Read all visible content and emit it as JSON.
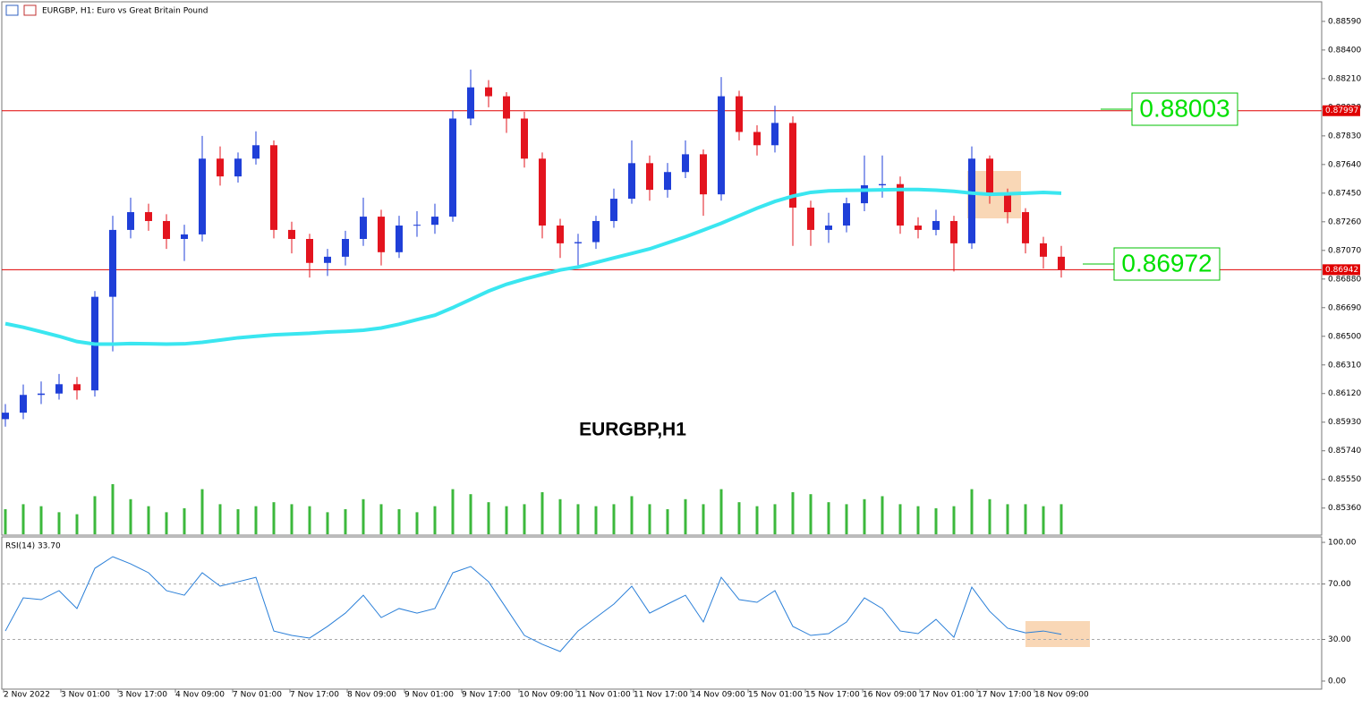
{
  "header": {
    "title": "EURGBP, H1:  Euro vs Great Britain Pound"
  },
  "chart_data": [
    {
      "type": "candlestick",
      "title": "EURGBP,H1",
      "x_labels": [
        "2 Nov 2022",
        "3 Nov 01:00",
        "3 Nov 17:00",
        "4 Nov 09:00",
        "7 Nov 01:00",
        "7 Nov 17:00",
        "8 Nov 09:00",
        "9 Nov 01:00",
        "9 Nov 17:00",
        "10 Nov 09:00",
        "11 Nov 01:00",
        "11 Nov 17:00",
        "14 Nov 09:00",
        "15 Nov 01:00",
        "15 Nov 17:00",
        "16 Nov 09:00",
        "17 Nov 01:00",
        "17 Nov 17:00",
        "18 Nov 09:00"
      ],
      "open": [
        0.8595,
        0.85993,
        0.86111,
        0.8612,
        0.86182,
        0.86141,
        0.86762,
        0.87206,
        0.87324,
        0.87265,
        0.87146,
        0.87176,
        0.87679,
        0.87561,
        0.87679,
        0.87768,
        0.87206,
        0.87146,
        0.86987,
        0.87028,
        0.87146,
        0.87294,
        0.87058,
        0.87235,
        0.8724,
        0.87294,
        0.87945,
        0.88152,
        0.88093,
        0.87945,
        0.87679,
        0.87235,
        0.87117,
        0.87125,
        0.87265,
        0.87413,
        0.87649,
        0.87472,
        0.8759,
        0.87708,
        0.87442,
        0.88093,
        0.87856,
        0.87768,
        0.87916,
        0.87354,
        0.87206,
        0.87235,
        0.87383,
        0.87502,
        0.8751,
        0.87235,
        0.87206,
        0.87265,
        0.87117,
        0.87679,
        0.87442,
        0.87324,
        0.87117,
        0.87028
      ],
      "high": [
        0.8605,
        0.8618,
        0.862,
        0.8625,
        0.8623,
        0.868,
        0.873,
        0.8742,
        0.8738,
        0.8731,
        0.8724,
        0.8783,
        0.8776,
        0.8772,
        0.8786,
        0.878,
        0.8726,
        0.8718,
        0.8708,
        0.872,
        0.8742,
        0.8734,
        0.873,
        0.8733,
        0.8738,
        0.88,
        0.8827,
        0.882,
        0.8812,
        0.8799,
        0.8772,
        0.8728,
        0.8718,
        0.873,
        0.8748,
        0.878,
        0.877,
        0.8765,
        0.878,
        0.8774,
        0.8822,
        0.8813,
        0.879,
        0.8803,
        0.8796,
        0.874,
        0.8732,
        0.8742,
        0.877,
        0.877,
        0.8756,
        0.8729,
        0.8734,
        0.873,
        0.8776,
        0.877,
        0.8748,
        0.8735,
        0.8716,
        0.871
      ],
      "low": [
        0.859,
        0.8595,
        0.8605,
        0.8608,
        0.8608,
        0.861,
        0.864,
        0.8715,
        0.872,
        0.8708,
        0.87,
        0.8713,
        0.875,
        0.8752,
        0.8764,
        0.8715,
        0.8705,
        0.8689,
        0.869,
        0.8697,
        0.871,
        0.8697,
        0.8702,
        0.8716,
        0.8718,
        0.8726,
        0.879,
        0.8802,
        0.8785,
        0.8762,
        0.8715,
        0.8702,
        0.8695,
        0.8708,
        0.8722,
        0.8738,
        0.874,
        0.8742,
        0.8755,
        0.873,
        0.874,
        0.878,
        0.877,
        0.8772,
        0.871,
        0.871,
        0.8712,
        0.8719,
        0.8733,
        0.8742,
        0.8718,
        0.8715,
        0.8717,
        0.8693,
        0.8708,
        0.8738,
        0.8725,
        0.8705,
        0.8695,
        0.8689
      ],
      "close": [
        0.85993,
        0.86111,
        0.8612,
        0.86182,
        0.86141,
        0.86762,
        0.87206,
        0.87324,
        0.87265,
        0.87146,
        0.87176,
        0.87679,
        0.87561,
        0.87679,
        0.87768,
        0.87206,
        0.87146,
        0.86987,
        0.87028,
        0.87146,
        0.87294,
        0.87058,
        0.87235,
        0.8724,
        0.87294,
        0.87945,
        0.88152,
        0.88093,
        0.87945,
        0.87679,
        0.87235,
        0.87117,
        0.87125,
        0.87265,
        0.87413,
        0.87649,
        0.87472,
        0.8759,
        0.87708,
        0.87442,
        0.88093,
        0.87856,
        0.87768,
        0.87916,
        0.87354,
        0.87206,
        0.87235,
        0.87383,
        0.87502,
        0.8751,
        0.87235,
        0.87206,
        0.87265,
        0.87117,
        0.87679,
        0.87442,
        0.87324,
        0.87117,
        0.87028,
        0.86939
      ],
      "up_color": "#1f3fd8",
      "down_color": "#e3141e",
      "ma": {
        "color": "#3ae6f0",
        "values": [
          0.86584,
          0.8656,
          0.8653,
          0.865,
          0.86465,
          0.86448,
          0.86448,
          0.86452,
          0.8645,
          0.86448,
          0.8645,
          0.8646,
          0.86475,
          0.8649,
          0.865,
          0.8651,
          0.86515,
          0.8652,
          0.86528,
          0.86533,
          0.8654,
          0.86555,
          0.8658,
          0.8661,
          0.8664,
          0.8669,
          0.86745,
          0.868,
          0.86845,
          0.8688,
          0.8691,
          0.8694,
          0.8696,
          0.8699,
          0.8702,
          0.8705,
          0.8708,
          0.8712,
          0.8716,
          0.87205,
          0.8725,
          0.873,
          0.8735,
          0.87395,
          0.8743,
          0.87455,
          0.87465,
          0.87468,
          0.8747,
          0.87472,
          0.87474,
          0.87474,
          0.8747,
          0.87462,
          0.8745,
          0.87442,
          0.87445,
          0.8745,
          0.87455,
          0.8745
        ]
      },
      "volume": {
        "color": "#3cb83c",
        "values": [
          25,
          30,
          28,
          22,
          20,
          38,
          50,
          35,
          28,
          22,
          26,
          45,
          30,
          25,
          28,
          32,
          30,
          28,
          22,
          25,
          35,
          30,
          25,
          22,
          28,
          45,
          40,
          32,
          28,
          30,
          42,
          35,
          30,
          28,
          30,
          38,
          30,
          25,
          35,
          30,
          45,
          32,
          28,
          30,
          42,
          40,
          32,
          30,
          35,
          38,
          30,
          28,
          26,
          28,
          45,
          35,
          30,
          30,
          28,
          30
        ]
      },
      "ylim": [
        0.8872,
        0.8518
      ],
      "yticks": [
        {
          "value": 0.8859,
          "label": "0.88590"
        },
        {
          "value": 0.884,
          "label": "0.88400"
        },
        {
          "value": 0.8821,
          "label": "0.88210"
        },
        {
          "value": 0.8802,
          "label": "0.88020"
        },
        {
          "value": 0.8783,
          "label": "0.87830"
        },
        {
          "value": 0.8764,
          "label": "0.87640"
        },
        {
          "value": 0.8745,
          "label": "0.87450"
        },
        {
          "value": 0.8726,
          "label": "0.87260"
        },
        {
          "value": 0.8707,
          "label": "0.87070"
        },
        {
          "value": 0.8688,
          "label": "0.86880"
        },
        {
          "value": 0.8669,
          "label": "0.86690"
        },
        {
          "value": 0.865,
          "label": "0.86500"
        },
        {
          "value": 0.8631,
          "label": "0.86310"
        },
        {
          "value": 0.8612,
          "label": "0.86120"
        },
        {
          "value": 0.8593,
          "label": "0.85930"
        },
        {
          "value": 0.8574,
          "label": "0.85740"
        },
        {
          "value": 0.8555,
          "label": "0.85550"
        },
        {
          "value": 0.8536,
          "label": "0.85360"
        }
      ],
      "hlines": [
        {
          "value": 0.87997,
          "label": "0.87997"
        },
        {
          "value": 0.86942,
          "label": "0.86942"
        }
      ],
      "hline_color": "#e00000",
      "annotations": [
        "0.88003",
        "0.86972"
      ]
    },
    {
      "type": "line",
      "title": "RSI(14) 33.70",
      "color": "#2a7fd8",
      "values": [
        36.1,
        60.0,
        58.7,
        65.2,
        52.3,
        81.3,
        89.7,
        84.5,
        78.1,
        65.2,
        61.9,
        78.1,
        68.4,
        71.6,
        74.8,
        36.1,
        32.9,
        31.0,
        39.4,
        49.0,
        61.9,
        45.8,
        52.3,
        49.0,
        52.3,
        78.1,
        82.6,
        71.6,
        52.3,
        32.9,
        26.5,
        21.3,
        36.1,
        45.8,
        55.5,
        68.4,
        49.0,
        55.5,
        61.9,
        42.6,
        74.8,
        58.7,
        56.8,
        65.2,
        39.4,
        32.9,
        34.2,
        42.6,
        60.0,
        52.3,
        36.1,
        34.2,
        44.5,
        31.6,
        67.7,
        50.3,
        38.1,
        34.8,
        36.1,
        33.7
      ],
      "ylim": [
        -5.8,
        103.9
      ],
      "yticks": [
        {
          "value": 100,
          "label": "100.00"
        },
        {
          "value": 70,
          "label": "70.00"
        },
        {
          "value": 30,
          "label": "30.00"
        },
        {
          "value": 0,
          "label": "0.00"
        }
      ]
    }
  ]
}
